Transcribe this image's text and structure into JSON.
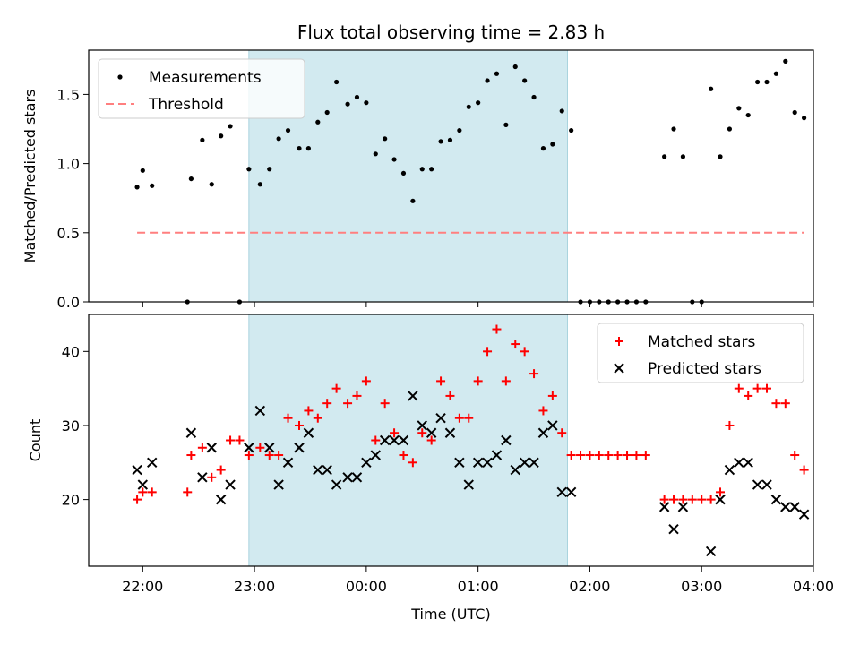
{
  "chart_data": [
    {
      "type": "scatter",
      "title": "Flux total observing time = 2.83 h",
      "xlabel": "",
      "ylabel": "Matched/Predicted stars",
      "ylim": [
        0,
        1.82
      ],
      "yticks": [
        "0.0",
        "0.5",
        "1.0",
        "1.5"
      ],
      "ytick_values": [
        0,
        0.5,
        1.0,
        1.5
      ],
      "xlim": [
        "21:31",
        "04:00"
      ],
      "highlight_span": {
        "start": "22:57",
        "end": "01:48",
        "color": "#d2eaf0"
      },
      "legend": {
        "placement": "top-left",
        "entries": [
          "Measurements",
          "Threshold"
        ]
      },
      "series": [
        {
          "name": "Measurements",
          "color": "#000000",
          "marker": "dot",
          "points": [
            [
              "21:57",
              0.83
            ],
            [
              "22:00",
              0.95
            ],
            [
              "22:05",
              0.84
            ],
            [
              "22:24",
              0.0
            ],
            [
              "22:26",
              0.89
            ],
            [
              "22:32",
              1.17
            ],
            [
              "22:37",
              0.85
            ],
            [
              "22:42",
              1.2
            ],
            [
              "22:47",
              1.27
            ],
            [
              "22:52",
              0.0
            ],
            [
              "22:57",
              0.96
            ],
            [
              "23:03",
              0.85
            ],
            [
              "23:08",
              0.96
            ],
            [
              "23:13",
              1.18
            ],
            [
              "23:18",
              1.24
            ],
            [
              "23:24",
              1.11
            ],
            [
              "23:29",
              1.11
            ],
            [
              "23:34",
              1.3
            ],
            [
              "23:39",
              1.37
            ],
            [
              "23:44",
              1.59
            ],
            [
              "23:50",
              1.43
            ],
            [
              "23:55",
              1.48
            ],
            [
              "24:00",
              1.44
            ],
            [
              "24:05",
              1.07
            ],
            [
              "24:10",
              1.18
            ],
            [
              "24:15",
              1.03
            ],
            [
              "24:20",
              0.93
            ],
            [
              "24:25",
              0.73
            ],
            [
              "24:30",
              0.96
            ],
            [
              "24:35",
              0.96
            ],
            [
              "24:40",
              1.16
            ],
            [
              "24:45",
              1.17
            ],
            [
              "24:50",
              1.24
            ],
            [
              "24:55",
              1.41
            ],
            [
              "25:00",
              1.44
            ],
            [
              "25:05",
              1.6
            ],
            [
              "25:10",
              1.65
            ],
            [
              "25:15",
              1.28
            ],
            [
              "25:20",
              1.7
            ],
            [
              "25:25",
              1.6
            ],
            [
              "25:30",
              1.48
            ],
            [
              "25:35",
              1.11
            ],
            [
              "25:40",
              1.14
            ],
            [
              "25:45",
              1.38
            ],
            [
              "25:50",
              1.24
            ],
            [
              "25:55",
              0.0
            ],
            [
              "26:00",
              0.0
            ],
            [
              "26:05",
              0.0
            ],
            [
              "26:10",
              0.0
            ],
            [
              "26:15",
              0.0
            ],
            [
              "26:20",
              0.0
            ],
            [
              "26:25",
              0.0
            ],
            [
              "26:30",
              0.0
            ],
            [
              "26:40",
              1.05
            ],
            [
              "26:45",
              1.25
            ],
            [
              "26:50",
              1.05
            ],
            [
              "26:55",
              0.0
            ],
            [
              "27:00",
              0.0
            ],
            [
              "27:05",
              1.54
            ],
            [
              "27:10",
              1.05
            ],
            [
              "27:15",
              1.25
            ],
            [
              "27:20",
              1.4
            ],
            [
              "27:25",
              1.35
            ],
            [
              "27:30",
              1.59
            ],
            [
              "27:35",
              1.59
            ],
            [
              "27:40",
              1.65
            ],
            [
              "27:45",
              1.74
            ],
            [
              "27:50",
              1.37
            ],
            [
              "27:55",
              1.33
            ]
          ]
        },
        {
          "name": "Threshold",
          "color": "#ff7f7f",
          "marker": "dashed-line",
          "points": [
            [
              "21:57",
              0.5
            ],
            [
              "27:55",
              0.5
            ]
          ]
        }
      ]
    },
    {
      "type": "scatter",
      "title": "",
      "xlabel": "Time (UTC)",
      "ylabel": "Count",
      "ylim": [
        11,
        45
      ],
      "yticks": [
        "20",
        "30",
        "40"
      ],
      "ytick_values": [
        20,
        30,
        40
      ],
      "xlim": [
        "21:31",
        "04:00"
      ],
      "xticks": [
        "22:00",
        "23:00",
        "00:00",
        "01:00",
        "02:00",
        "03:00",
        "04:00"
      ],
      "highlight_span": {
        "start": "22:57",
        "end": "01:48",
        "color": "#d2eaf0"
      },
      "legend": {
        "placement": "top-right",
        "entries": [
          "Matched stars",
          "Predicted stars"
        ]
      },
      "series": [
        {
          "name": "Matched stars",
          "color": "#ff0000",
          "marker": "plus",
          "points": [
            [
              "21:57",
              20
            ],
            [
              "22:00",
              21
            ],
            [
              "22:05",
              21
            ],
            [
              "22:24",
              21
            ],
            [
              "22:26",
              26
            ],
            [
              "22:32",
              27
            ],
            [
              "22:37",
              23
            ],
            [
              "22:42",
              24
            ],
            [
              "22:47",
              28
            ],
            [
              "22:52",
              28
            ],
            [
              "22:57",
              26
            ],
            [
              "23:03",
              27
            ],
            [
              "23:08",
              26
            ],
            [
              "23:13",
              26
            ],
            [
              "23:18",
              31
            ],
            [
              "23:24",
              30
            ],
            [
              "23:29",
              32
            ],
            [
              "23:34",
              31
            ],
            [
              "23:39",
              33
            ],
            [
              "23:44",
              35
            ],
            [
              "23:50",
              33
            ],
            [
              "23:55",
              34
            ],
            [
              "24:00",
              36
            ],
            [
              "24:05",
              28
            ],
            [
              "24:10",
              33
            ],
            [
              "24:15",
              29
            ],
            [
              "24:20",
              26
            ],
            [
              "24:25",
              25
            ],
            [
              "24:30",
              29
            ],
            [
              "24:35",
              28
            ],
            [
              "24:40",
              36
            ],
            [
              "24:45",
              34
            ],
            [
              "24:50",
              31
            ],
            [
              "24:55",
              31
            ],
            [
              "25:00",
              36
            ],
            [
              "25:05",
              40
            ],
            [
              "25:10",
              43
            ],
            [
              "25:15",
              36
            ],
            [
              "25:20",
              41
            ],
            [
              "25:25",
              40
            ],
            [
              "25:30",
              37
            ],
            [
              "25:35",
              32
            ],
            [
              "25:40",
              34
            ],
            [
              "25:45",
              29
            ],
            [
              "25:50",
              26
            ],
            [
              "25:55",
              26
            ],
            [
              "26:00",
              26
            ],
            [
              "26:05",
              26
            ],
            [
              "26:10",
              26
            ],
            [
              "26:15",
              26
            ],
            [
              "26:20",
              26
            ],
            [
              "26:25",
              26
            ],
            [
              "26:30",
              26
            ],
            [
              "26:40",
              20
            ],
            [
              "26:45",
              20
            ],
            [
              "26:50",
              20
            ],
            [
              "26:55",
              20
            ],
            [
              "27:00",
              20
            ],
            [
              "27:05",
              20
            ],
            [
              "27:10",
              21
            ],
            [
              "27:15",
              30
            ],
            [
              "27:20",
              35
            ],
            [
              "27:25",
              34
            ],
            [
              "27:30",
              35
            ],
            [
              "27:35",
              35
            ],
            [
              "27:40",
              33
            ],
            [
              "27:45",
              33
            ],
            [
              "27:50",
              26
            ],
            [
              "27:55",
              24
            ]
          ]
        },
        {
          "name": "Predicted stars",
          "color": "#000000",
          "marker": "x",
          "points": [
            [
              "21:57",
              24
            ],
            [
              "22:00",
              22
            ],
            [
              "22:05",
              25
            ],
            [
              "22:26",
              29
            ],
            [
              "22:32",
              23
            ],
            [
              "22:37",
              27
            ],
            [
              "22:42",
              20
            ],
            [
              "22:47",
              22
            ],
            [
              "22:57",
              27
            ],
            [
              "23:03",
              32
            ],
            [
              "23:08",
              27
            ],
            [
              "23:13",
              22
            ],
            [
              "23:18",
              25
            ],
            [
              "23:24",
              27
            ],
            [
              "23:29",
              29
            ],
            [
              "23:34",
              24
            ],
            [
              "23:39",
              24
            ],
            [
              "23:44",
              22
            ],
            [
              "23:50",
              23
            ],
            [
              "23:55",
              23
            ],
            [
              "24:00",
              25
            ],
            [
              "24:05",
              26
            ],
            [
              "24:10",
              28
            ],
            [
              "24:15",
              28
            ],
            [
              "24:20",
              28
            ],
            [
              "24:25",
              34
            ],
            [
              "24:30",
              30
            ],
            [
              "24:35",
              29
            ],
            [
              "24:40",
              31
            ],
            [
              "24:45",
              29
            ],
            [
              "24:50",
              25
            ],
            [
              "24:55",
              22
            ],
            [
              "25:00",
              25
            ],
            [
              "25:05",
              25
            ],
            [
              "25:10",
              26
            ],
            [
              "25:15",
              28
            ],
            [
              "25:20",
              24
            ],
            [
              "25:25",
              25
            ],
            [
              "25:30",
              25
            ],
            [
              "25:35",
              29
            ],
            [
              "25:40",
              30
            ],
            [
              "25:45",
              21
            ],
            [
              "25:50",
              21
            ],
            [
              "26:40",
              19
            ],
            [
              "26:45",
              16
            ],
            [
              "26:50",
              19
            ],
            [
              "27:05",
              13
            ],
            [
              "27:10",
              20
            ],
            [
              "27:15",
              24
            ],
            [
              "27:20",
              25
            ],
            [
              "27:25",
              25
            ],
            [
              "27:30",
              22
            ],
            [
              "27:35",
              22
            ],
            [
              "27:40",
              20
            ],
            [
              "27:45",
              19
            ],
            [
              "27:50",
              19
            ],
            [
              "27:55",
              18
            ]
          ]
        }
      ]
    }
  ]
}
